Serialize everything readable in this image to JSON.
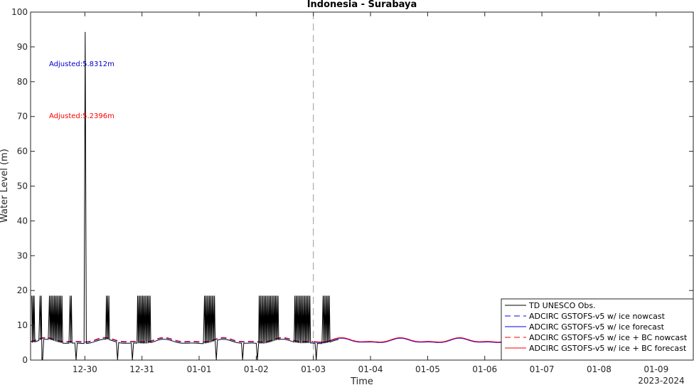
{
  "chart_data": {
    "type": "line",
    "title": "Indonesia - Surabaya",
    "xlabel": "Time",
    "ylabel": "Water Level (m)",
    "x_year_label": "2023-2024",
    "x_range_days_from_first_tick": [
      -0.95,
      10.65
    ],
    "x_ticks": [
      "12-30",
      "12-31",
      "01-01",
      "01-02",
      "01-03",
      "01-04",
      "01-05",
      "01-06",
      "01-07",
      "01-08",
      "01-09"
    ],
    "ylim": [
      0,
      100
    ],
    "y_ticks": [
      0,
      10,
      20,
      30,
      40,
      50,
      60,
      70,
      80,
      90,
      100
    ],
    "grid": false,
    "legend_position": "bottom-right",
    "forecast_start": "01-03",
    "annotations": [
      {
        "text": "Adjusted:5.8312m",
        "color": "#0000cc",
        "x": "12-29 07:00",
        "y": 85
      },
      {
        "text": "Adjusted:5.2396m",
        "color": "#ff0000",
        "x": "12-29 07:00",
        "y": 70
      }
    ],
    "series": [
      {
        "name": "TD UNESCO Obs.",
        "color": "#000000",
        "dash": "solid",
        "approx_range_x": [
          "12-29 00:00",
          "01-03 12:00"
        ],
        "baseline_range_y": [
          4.5,
          6.5
        ],
        "spike_levels_y": [
          18.5,
          94.3
        ],
        "dropout_y": 0
      },
      {
        "name": "ADCIRC GSTOFS-v5 w/ ice nowcast",
        "color": "#0000ff",
        "dash": "dashed",
        "approx_range_x": [
          "12-29 00:00",
          "01-03 00:00"
        ],
        "range_y": [
          4.3,
          6.8
        ]
      },
      {
        "name": "ADCIRC GSTOFS-v5 w/ ice forecast",
        "color": "#0000ff",
        "dash": "solid",
        "approx_range_x": [
          "01-03 00:00",
          "01-09 15:00"
        ],
        "range_y": [
          4.6,
          6.4
        ]
      },
      {
        "name": "ADCIRC GSTOFS-v5 w/ ice + BC nowcast",
        "color": "#ff0000",
        "dash": "dashed",
        "approx_range_x": [
          "12-29 00:00",
          "01-03 00:00"
        ],
        "range_y": [
          4.3,
          7.0
        ]
      },
      {
        "name": "ADCIRC GSTOFS-v5 w/ ice + BC forecast",
        "color": "#ff0000",
        "dash": "solid",
        "approx_range_x": [
          "01-03 00:00",
          "01-09 15:00"
        ],
        "range_y": [
          4.6,
          7.0
        ]
      }
    ]
  }
}
